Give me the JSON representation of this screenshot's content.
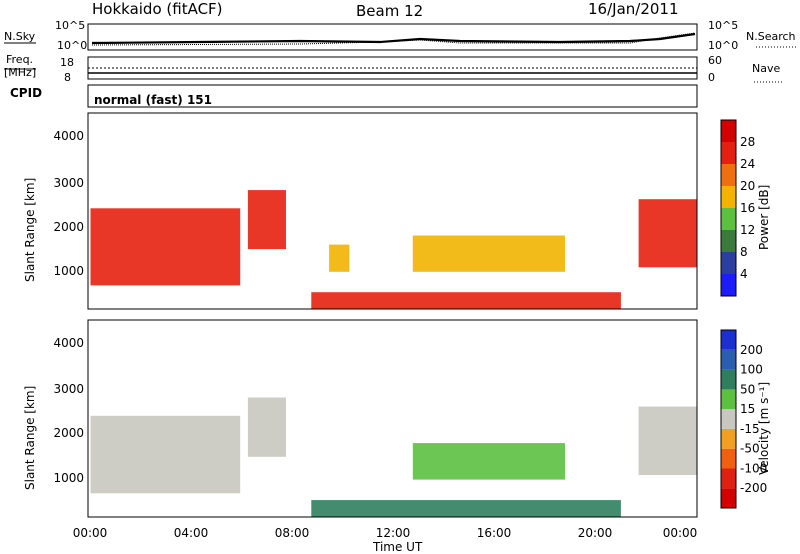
{
  "header": {
    "radar": "Hokkaido (fitACF)",
    "beam": "Beam 12",
    "date": "16/Jan/2011"
  },
  "noise_panel": {
    "left_label": "N.Sky",
    "left_ticks": [
      "10^5",
      "10^0"
    ],
    "right_label": "N.Search",
    "right_ticks": [
      "10^5",
      "10^0"
    ]
  },
  "freq_panel": {
    "left_label_1": "Freq.",
    "left_label_2": "[MHz]",
    "left_ticks": [
      "18",
      "8"
    ],
    "right_label": "Nave",
    "right_ticks": [
      "60",
      "0"
    ]
  },
  "cpid_panel": {
    "label": "CPID",
    "value": "normal (fast) 151"
  },
  "axes": {
    "ylabel": "Slant Range [km]",
    "xlabel": "Time UT",
    "yticks": [
      "1000",
      "2000",
      "3000",
      "4000"
    ],
    "xticks": [
      "00:00",
      "04:00",
      "08:00",
      "12:00",
      "16:00",
      "20:00",
      "00:00"
    ]
  },
  "power_colorbar": {
    "label": "Power [dB]",
    "ticks": [
      "4",
      "8",
      "12",
      "16",
      "20",
      "24",
      "28"
    ],
    "colors": [
      "#1c1cff",
      "#2a3fa0",
      "#3a7a3a",
      "#5cc040",
      "#f2b400",
      "#f07010",
      "#e62010",
      "#d40000"
    ]
  },
  "velocity_colorbar": {
    "label": "Velocity [m s⁻¹]",
    "ticks": [
      "200",
      "100",
      "50",
      "15",
      "-15",
      "-50",
      "-100",
      "-200"
    ],
    "colors": [
      "#1c2fd0",
      "#2a5fb0",
      "#2f7f5f",
      "#5cc040",
      "#c8c8c0",
      "#f0a020",
      "#f06010",
      "#e02010",
      "#d40000"
    ]
  },
  "chart_data": {
    "type": "heatmap",
    "x_range_hours": [
      0,
      24
    ],
    "y_range_km": [
      180,
      4500
    ],
    "power_regions": [
      {
        "t": [
          0.1,
          6.0
        ],
        "r": [
          700,
          2400
        ],
        "db": 26
      },
      {
        "t": [
          6.3,
          7.8
        ],
        "r": [
          1500,
          2800
        ],
        "db": 24
      },
      {
        "t": [
          9.5,
          10.3
        ],
        "r": [
          1000,
          1600
        ],
        "db": 16
      },
      {
        "t": [
          12.8,
          18.8
        ],
        "r": [
          1000,
          1800
        ],
        "db": 18
      },
      {
        "t": [
          8.8,
          21.0
        ],
        "r": [
          190,
          550
        ],
        "db": 26
      },
      {
        "t": [
          21.7,
          24.0
        ],
        "r": [
          1100,
          2600
        ],
        "db": 24
      }
    ],
    "velocity_regions": [
      {
        "t": [
          0.1,
          6.0
        ],
        "r": [
          700,
          2400
        ],
        "v": 0
      },
      {
        "t": [
          6.3,
          7.8
        ],
        "r": [
          1500,
          2800
        ],
        "v": 0
      },
      {
        "t": [
          12.8,
          18.8
        ],
        "r": [
          1000,
          1800
        ],
        "v": 20
      },
      {
        "t": [
          8.8,
          21.0
        ],
        "r": [
          190,
          550
        ],
        "v": 60
      },
      {
        "t": [
          21.7,
          24.0
        ],
        "r": [
          1100,
          2600
        ],
        "v": 10
      }
    ]
  }
}
